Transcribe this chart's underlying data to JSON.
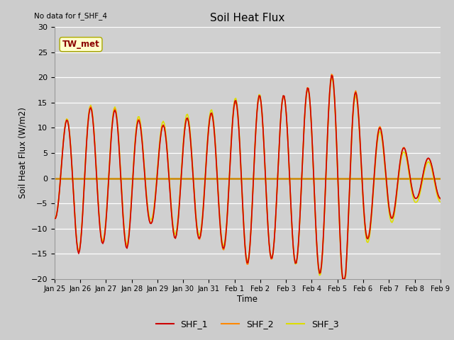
{
  "title": "Soil Heat Flux",
  "subtitle": "No data for f_SHF_4",
  "ylabel": "Soil Heat Flux (W/m2)",
  "xlabel": "Time",
  "annotation": "TW_met",
  "ylim": [
    -20,
    30
  ],
  "line_colors": {
    "SHF_1": "#cc0000",
    "SHF_2": "#ff8800",
    "SHF_3": "#dddd00"
  },
  "legend_labels": [
    "SHF_1",
    "SHF_2",
    "SHF_3"
  ],
  "tick_labels": [
    "Jan 25",
    "Jan 26",
    "Jan 27",
    "Jan 28",
    "Jan 29",
    "Jan 30",
    "Jan 31",
    "Feb 1",
    "Feb 2",
    "Feb 3",
    "Feb 4",
    "Feb 5",
    "Feb 6",
    "Feb 7",
    "Feb 8",
    "Feb 9"
  ]
}
